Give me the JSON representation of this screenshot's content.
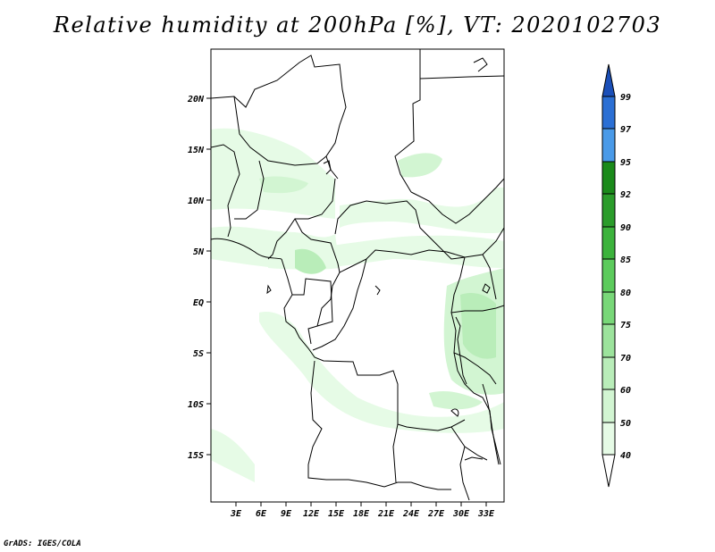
{
  "title": "Relative humidity at 200hPa [%], VT: 2020102703",
  "footer": "GrADS: IGES/COLA",
  "map": {
    "region": "Central Africa",
    "lat_range": [
      -19,
      25
    ],
    "lon_range": [
      0,
      35
    ],
    "lat_ticks": [
      "20N",
      "15N",
      "10N",
      "5N",
      "EQ",
      "5S",
      "10S",
      "15S"
    ],
    "lon_ticks": [
      "3E",
      "6E",
      "9E",
      "12E",
      "15E",
      "18E",
      "21E",
      "24E",
      "27E",
      "30E",
      "33E"
    ]
  },
  "colorbar": {
    "labels": [
      "40",
      "50",
      "60",
      "70",
      "75",
      "80",
      "85",
      "90",
      "92",
      "95",
      "97",
      "99"
    ],
    "colors": [
      "#ffffff",
      "#e6fbe6",
      "#d2f5d2",
      "#b9edb9",
      "#9ce39c",
      "#78d778",
      "#5ccb5c",
      "#3cb33c",
      "#2a9c2a",
      "#1a8a1a",
      "#4a9ae8",
      "#2b6fd4",
      "#1b4fb8"
    ]
  },
  "chart_data": {
    "type": "heatmap",
    "title": "Relative humidity at 200hPa [%], VT: 2020102703",
    "variable": "Relative humidity",
    "level": "200hPa",
    "units": "%",
    "valid_time": "2020102703",
    "levels": [
      40,
      50,
      60,
      70,
      75,
      80,
      85,
      90,
      92,
      95,
      97,
      99
    ],
    "x_ticks": [
      "3E",
      "6E",
      "9E",
      "12E",
      "15E",
      "18E",
      "21E",
      "24E",
      "27E",
      "30E",
      "33E"
    ],
    "y_ticks": [
      "20N",
      "15N",
      "10N",
      "5N",
      "EQ",
      "5S",
      "10S",
      "15S"
    ]
  }
}
